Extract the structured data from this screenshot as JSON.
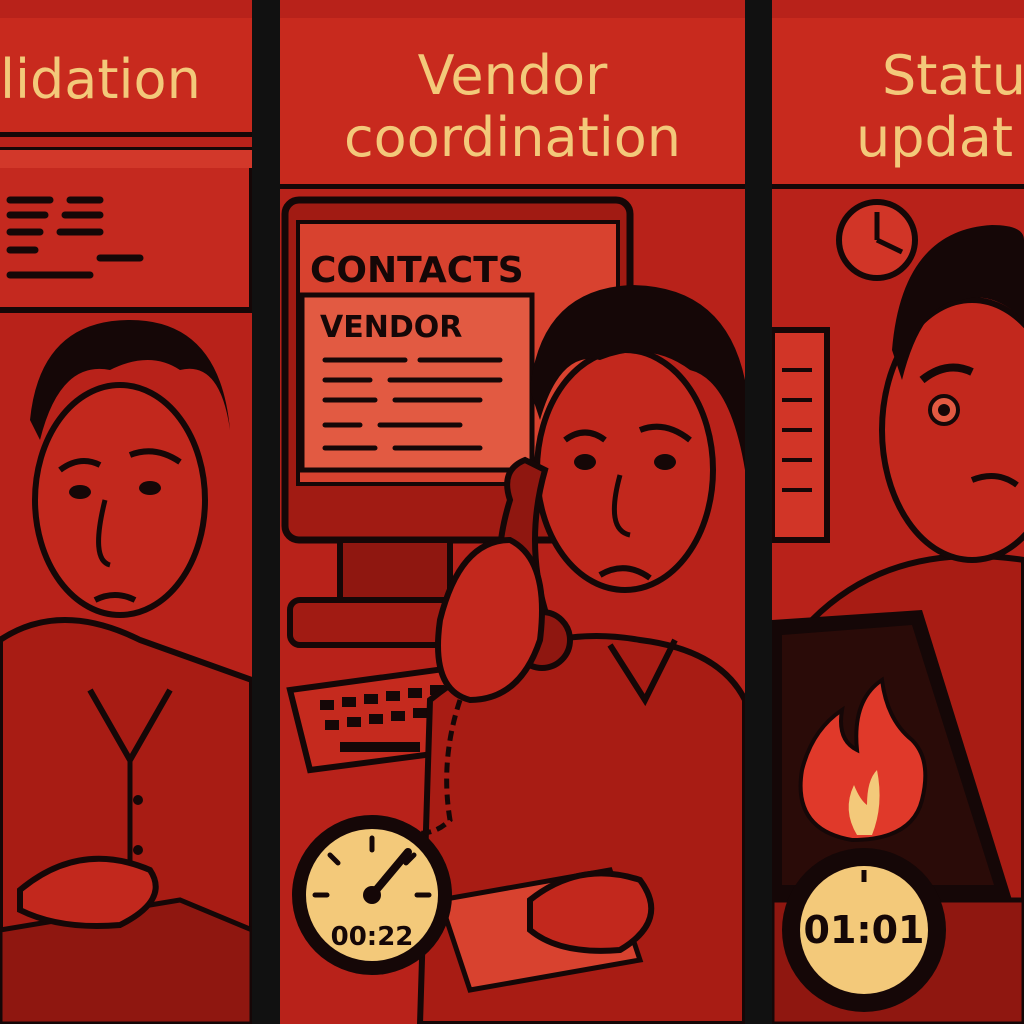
{
  "panels": [
    {
      "title_lines": [
        "lidation"
      ]
    },
    {
      "title_lines": [
        "Vendor",
        "coordination"
      ],
      "screen_header": "CONTACTS",
      "screen_subheader": "VENDOR",
      "timer": "00:22"
    },
    {
      "title_lines": [
        "Statu",
        "updat"
      ],
      "timer": "01:01"
    }
  ],
  "icons": [
    "stopwatch-icon",
    "wall-clock-icon",
    "flame-icon",
    "phone-icon"
  ],
  "colors": {
    "panel_red": "#c0241a",
    "ink": "#150707",
    "title_yellow": "#f3c97a"
  }
}
